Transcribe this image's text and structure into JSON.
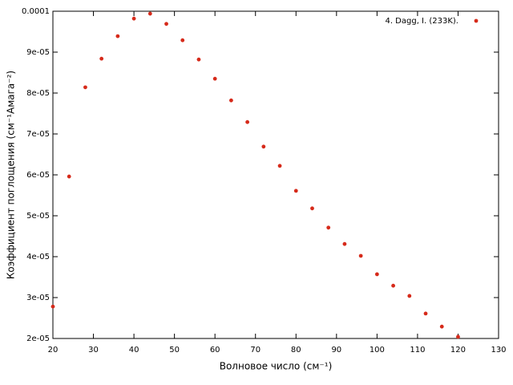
{
  "chart_data": {
    "type": "scatter",
    "xlabel": "Волновое число (см⁻¹)",
    "ylabel": "Коэффициент поглощения (см⁻¹Амага⁻²)",
    "series": [
      {
        "name": "4. Dagg, I. (233K).",
        "color": "#d62a1a",
        "x": [
          20,
          24,
          28,
          32,
          36,
          40,
          44,
          48,
          52,
          56,
          60,
          64,
          68,
          72,
          76,
          80,
          84,
          88,
          92,
          96,
          100,
          104,
          108,
          112,
          116,
          120
        ],
        "values": [
          2.78e-05,
          5.96e-05,
          8.14e-05,
          8.84e-05,
          9.39e-05,
          9.82e-05,
          9.94e-05,
          9.69e-05,
          9.29e-05,
          8.82e-05,
          8.35e-05,
          7.82e-05,
          7.29e-05,
          6.69e-05,
          6.22e-05,
          5.61e-05,
          5.18e-05,
          4.71e-05,
          4.31e-05,
          4.02e-05,
          3.57e-05,
          3.29e-05,
          3.04e-05,
          2.61e-05,
          2.29e-05,
          2.04e-05
        ]
      }
    ],
    "xlim": [
      20,
      130
    ],
    "xticks": [
      20,
      30,
      40,
      50,
      60,
      70,
      80,
      90,
      100,
      110,
      120,
      130
    ],
    "ylim": [
      2e-05,
      0.0001
    ],
    "yticks": [
      {
        "value": 2e-05,
        "label": "2e-05"
      },
      {
        "value": 3e-05,
        "label": "3e-05"
      },
      {
        "value": 4e-05,
        "label": "4e-05"
      },
      {
        "value": 5e-05,
        "label": "5e-05"
      },
      {
        "value": 6e-05,
        "label": "6e-05"
      },
      {
        "value": 7e-05,
        "label": "7e-05"
      },
      {
        "value": 8e-05,
        "label": "8e-05"
      },
      {
        "value": 9e-05,
        "label": "9e-05"
      },
      0.0001
    ],
    "grid": false,
    "legend": "top-right"
  }
}
